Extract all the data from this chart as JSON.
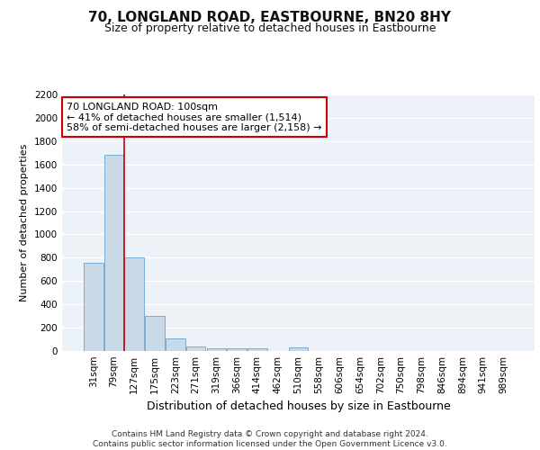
{
  "title": "70, LONGLAND ROAD, EASTBOURNE, BN20 8HY",
  "subtitle": "Size of property relative to detached houses in Eastbourne",
  "xlabel": "Distribution of detached houses by size in Eastbourne",
  "ylabel": "Number of detached properties",
  "categories": [
    "31sqm",
    "79sqm",
    "127sqm",
    "175sqm",
    "223sqm",
    "271sqm",
    "319sqm",
    "366sqm",
    "414sqm",
    "462sqm",
    "510sqm",
    "558sqm",
    "606sqm",
    "654sqm",
    "702sqm",
    "750sqm",
    "798sqm",
    "846sqm",
    "894sqm",
    "941sqm",
    "989sqm"
  ],
  "values": [
    760,
    1680,
    800,
    300,
    110,
    35,
    25,
    20,
    20,
    0,
    30,
    0,
    0,
    0,
    0,
    0,
    0,
    0,
    0,
    0,
    0
  ],
  "bar_color": "#c9d9e8",
  "bar_edge_color": "#7aadd4",
  "ylim": [
    0,
    2200
  ],
  "yticks": [
    0,
    200,
    400,
    600,
    800,
    1000,
    1200,
    1400,
    1600,
    1800,
    2000,
    2200
  ],
  "red_line_x": 1.5,
  "annotation_line1": "70 LONGLAND ROAD: 100sqm",
  "annotation_line2": "← 41% of detached houses are smaller (1,514)",
  "annotation_line3": "58% of semi-detached houses are larger (2,158) →",
  "annotation_box_color": "#ffffff",
  "annotation_border_color": "#cc0000",
  "footer": "Contains HM Land Registry data © Crown copyright and database right 2024.\nContains public sector information licensed under the Open Government Licence v3.0.",
  "background_color": "#edf2f9",
  "grid_color": "#ffffff",
  "title_fontsize": 11,
  "subtitle_fontsize": 9,
  "ylabel_fontsize": 8,
  "xlabel_fontsize": 9,
  "tick_fontsize": 7.5,
  "annotation_fontsize": 8
}
